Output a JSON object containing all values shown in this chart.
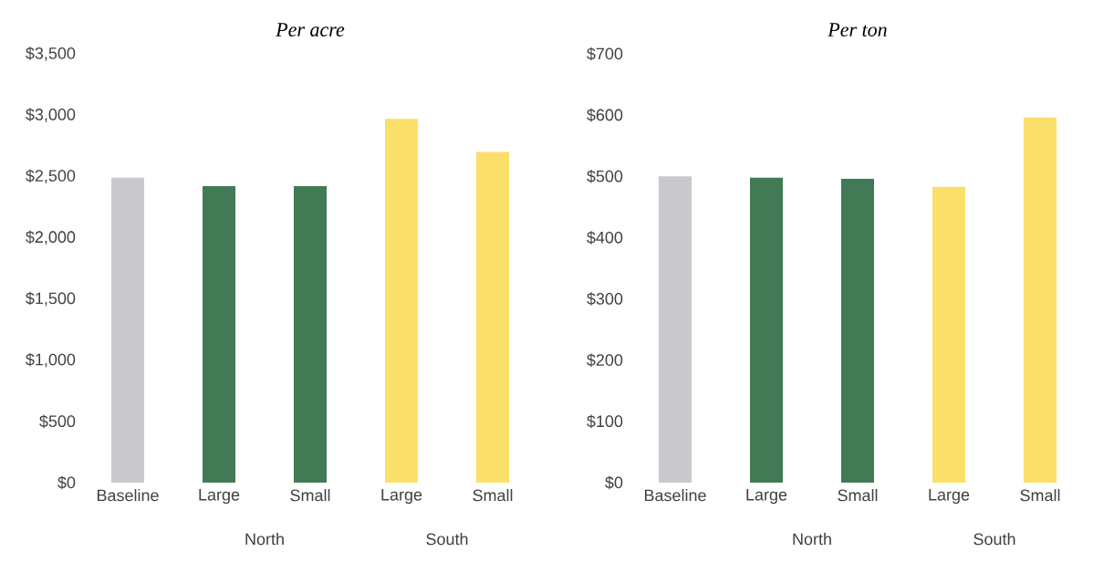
{
  "chart_data": [
    {
      "type": "bar",
      "title": "Per acre",
      "categories": [
        "Baseline",
        "Large",
        "Small",
        "Large",
        "Small"
      ],
      "values": [
        2490,
        2420,
        2420,
        2970,
        2700
      ],
      "colors": [
        "#c9c9cd",
        "#437a56",
        "#437a56",
        "#fbdf6b",
        "#fbdf6b"
      ],
      "ylim": [
        0,
        3500
      ],
      "yticks": [
        {
          "value": 0,
          "label": "$0"
        },
        {
          "value": 500,
          "label": "$500"
        },
        {
          "value": 1000,
          "label": "$1,000"
        },
        {
          "value": 1500,
          "label": "$1,500"
        },
        {
          "value": 2000,
          "label": "$2,000"
        },
        {
          "value": 2500,
          "label": "$2,500"
        },
        {
          "value": 3000,
          "label": "$3,000"
        },
        {
          "value": 3500,
          "label": "$3,500"
        }
      ],
      "annotations": [
        "North",
        "South"
      ]
    },
    {
      "type": "bar",
      "title": "Per ton",
      "categories": [
        "Baseline",
        "Large",
        "Small",
        "Large",
        "Small"
      ],
      "values": [
        500,
        498,
        496,
        483,
        596
      ],
      "colors": [
        "#c9c9cd",
        "#437a56",
        "#437a56",
        "#fbdf6b",
        "#fbdf6b"
      ],
      "ylim": [
        0,
        700
      ],
      "yticks": [
        {
          "value": 0,
          "label": "$0"
        },
        {
          "value": 100,
          "label": "$100"
        },
        {
          "value": 200,
          "label": "$200"
        },
        {
          "value": 300,
          "label": "$300"
        },
        {
          "value": 400,
          "label": "$400"
        },
        {
          "value": 500,
          "label": "$500"
        },
        {
          "value": 600,
          "label": "$600"
        },
        {
          "value": 700,
          "label": "$700"
        }
      ],
      "annotations": [
        "North",
        "South"
      ]
    }
  ]
}
